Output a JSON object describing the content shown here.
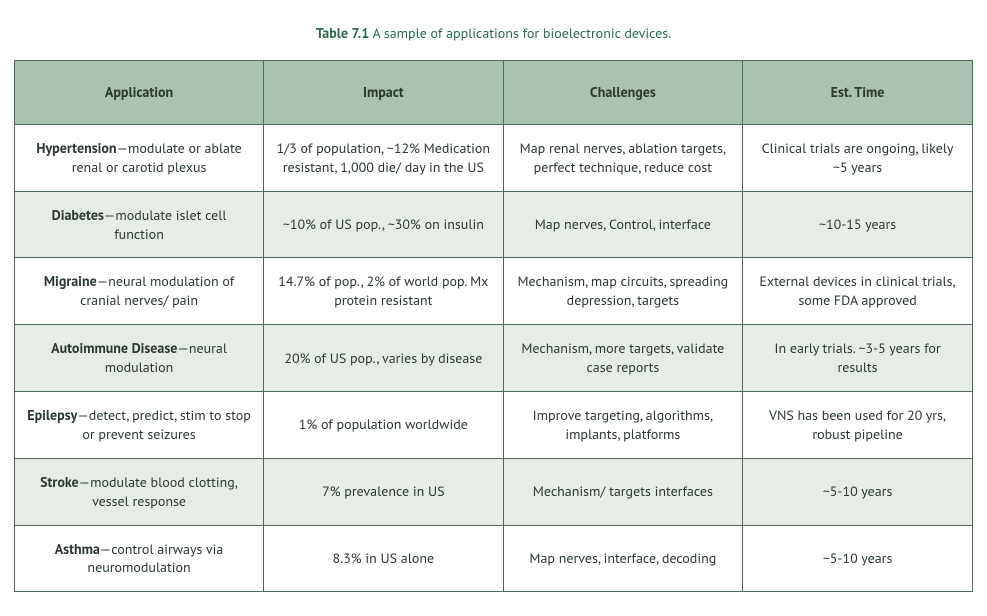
{
  "table": {
    "type": "table",
    "title_label": "Table 7.1",
    "title_caption": "A sample of applications for bioelectronic devices.",
    "colors": {
      "border": "#4a6b5a",
      "header_bg": "#a8c3b0",
      "stripe_bg": "#e6ede6",
      "text": "#2a3a30",
      "title": "#2a6b4f",
      "background": "#ffffff"
    },
    "typography": {
      "base_fontsize_pt": 11,
      "header_fontsize_pt": 11,
      "title_fontsize_pt": 11,
      "header_weight": 700,
      "term_weight": 700,
      "body_weight": 400,
      "line_height": 1.35
    },
    "column_widths_pct": [
      26,
      25,
      25,
      24
    ],
    "columns": [
      "Application",
      "Impact",
      "Challenges",
      "Est. Time"
    ],
    "rows": [
      {
        "term": "Hypertension",
        "desc": "—modulate or ablate renal or carotid plexus",
        "impact": "1/3 of population, ~12% Medication resistant, 1,000 die/ day in the US",
        "challenges": "Map renal nerves, ablation targets, perfect technique, reduce cost",
        "est_time": "Clinical trials are ongoing, likely ~5 years",
        "striped": false
      },
      {
        "term": "Diabetes",
        "desc": "—modulate islet cell function",
        "impact": "~10% of US pop., ~30% on insulin",
        "challenges": "Map nerves, Control, interface",
        "est_time": "~10-15 years",
        "striped": true
      },
      {
        "term": "Migraine",
        "desc": "—neural modulation of cranial nerves/ pain",
        "impact": "14.7% of pop., 2% of world pop. Mx protein resistant",
        "challenges": "Mechanism, map circuits, spreading depression, targets",
        "est_time": "External devices in clinical trials, some FDA approved",
        "striped": false
      },
      {
        "term": "Autoimmune Disease",
        "desc": "—neural modulation",
        "impact": "20% of US pop., varies by disease",
        "challenges": "Mechanism, more targets, validate case reports",
        "est_time": "In early trials. ~3-5 years for results",
        "striped": true
      },
      {
        "term": "Epilepsy",
        "desc": "—detect, predict, stim to stop or prevent seizures",
        "impact": "1% of population worldwide",
        "challenges": "Improve targeting, algorithms, implants, platforms",
        "est_time": "VNS has been used for 20 yrs, robust pipeline",
        "striped": false
      },
      {
        "term": "Stroke",
        "desc": "—modulate blood clotting, vessel response",
        "impact": "7% prevalence in US",
        "challenges": "Mechanism/ targets interfaces",
        "est_time": "~5-10 years",
        "striped": true
      },
      {
        "term": "Asthma",
        "desc": "—control airways via neuromodulation",
        "impact": "8.3% in US alone",
        "challenges": "Map nerves, interface, decoding",
        "est_time": "~5-10 years",
        "striped": false
      }
    ]
  }
}
